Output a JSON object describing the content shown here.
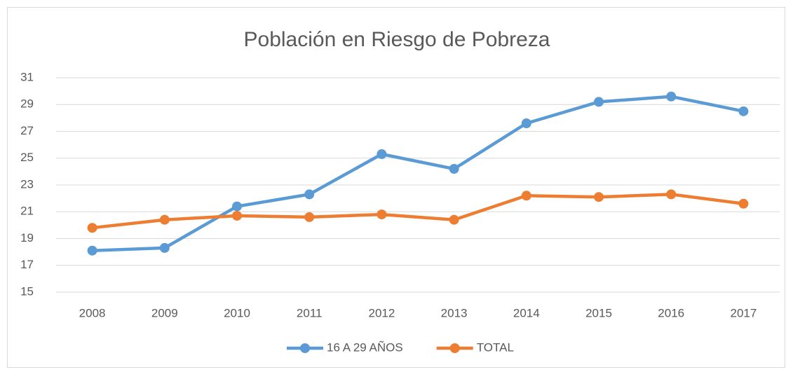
{
  "chart_data": {
    "type": "line",
    "title": "Población en Riesgo de Pobreza",
    "categories": [
      "2008",
      "2009",
      "2010",
      "2011",
      "2012",
      "2013",
      "2014",
      "2015",
      "2016",
      "2017"
    ],
    "series": [
      {
        "name": "16 A 29 AÑOS",
        "color": "#5b9bd5",
        "values": [
          18.1,
          18.3,
          21.4,
          22.3,
          25.3,
          24.2,
          27.6,
          29.2,
          29.6,
          28.5
        ]
      },
      {
        "name": "TOTAL",
        "color": "#ed7d31",
        "values": [
          19.8,
          20.4,
          20.7,
          20.6,
          20.8,
          20.4,
          22.2,
          22.1,
          22.3,
          21.6
        ]
      }
    ],
    "ylim": [
      15,
      31
    ],
    "yticks": [
      15,
      17,
      19,
      21,
      23,
      25,
      27,
      29,
      31
    ],
    "grid": true,
    "legend": "bottom"
  }
}
